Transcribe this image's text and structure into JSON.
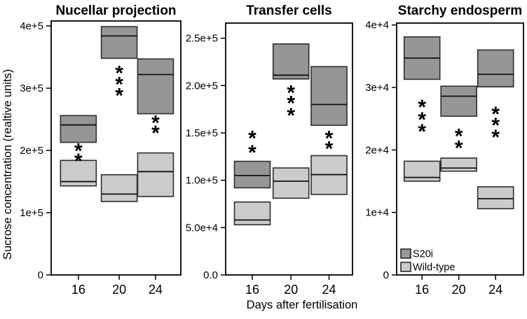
{
  "figure": {
    "ylabel": "Sucrose concentration (realtive units)",
    "xlabel": "Days after fertilisation",
    "background": "#ffffff",
    "frame_color": "#000000",
    "legend": [
      {
        "name": "S20i",
        "color": "#969696"
      },
      {
        "name": "Wild-type",
        "color": "#cbcbcb"
      }
    ]
  },
  "chart_data": [
    {
      "type": "box",
      "title": "Nucellar projection",
      "x_categories": [
        "16",
        "20",
        "24"
      ],
      "ylim": [
        0,
        408000
      ],
      "grid": false,
      "yticks": [
        {
          "value": 0,
          "label": "0"
        },
        {
          "value": 100000,
          "label": "1e+5"
        },
        {
          "value": 200000,
          "label": "2e+5"
        },
        {
          "value": 300000,
          "label": "3e+5"
        },
        {
          "value": 400000,
          "label": "4e+5"
        }
      ],
      "series": [
        {
          "name": "S20i",
          "color": "#969696",
          "boxes": [
            {
              "x": "16",
              "low": 213000,
              "median": 241000,
              "high": 256000
            },
            {
              "x": "20",
              "low": 348000,
              "median": 384000,
              "high": 399000
            },
            {
              "x": "24",
              "low": 259000,
              "median": 322000,
              "high": 347000
            }
          ]
        },
        {
          "name": "Wild-type",
          "color": "#cbcbcb",
          "boxes": [
            {
              "x": "16",
              "low": 143000,
              "median": 150000,
              "high": 184000
            },
            {
              "x": "20",
              "low": 118000,
              "median": 130000,
              "high": 161000
            },
            {
              "x": "24",
              "low": 126000,
              "median": 166000,
              "high": 196000
            }
          ]
        }
      ],
      "significance_stars": [
        {
          "x": "16",
          "stars": "**",
          "star_y_values": [
            205000,
            189000
          ]
        },
        {
          "x": "20",
          "stars": "***",
          "star_y_values": [
            330000,
            312000,
            294000
          ]
        },
        {
          "x": "24",
          "stars": "**",
          "star_y_values": [
            250000,
            234000
          ]
        }
      ]
    },
    {
      "type": "box",
      "title": "Transfer cells",
      "x_categories": [
        "16",
        "20",
        "24"
      ],
      "ylim": [
        0,
        266000
      ],
      "grid": false,
      "yticks": [
        {
          "value": 0,
          "label": "0.0"
        },
        {
          "value": 50000,
          "label": "5.0e+4"
        },
        {
          "value": 100000,
          "label": "1.0e+5"
        },
        {
          "value": 150000,
          "label": "1.5e+5"
        },
        {
          "value": 200000,
          "label": "2.0e+5"
        },
        {
          "value": 250000,
          "label": "2.5e+5"
        }
      ],
      "series": [
        {
          "name": "S20i",
          "color": "#969696",
          "boxes": [
            {
              "x": "16",
              "low": 92000,
              "median": 105000,
              "high": 120000
            },
            {
              "x": "20",
              "low": 207000,
              "median": 211000,
              "high": 244000
            },
            {
              "x": "24",
              "low": 158000,
              "median": 180000,
              "high": 220000
            }
          ]
        },
        {
          "name": "Wild-type",
          "color": "#cbcbcb",
          "boxes": [
            {
              "x": "16",
              "low": 53000,
              "median": 58000,
              "high": 77000
            },
            {
              "x": "20",
              "low": 81000,
              "median": 99000,
              "high": 113000
            },
            {
              "x": "24",
              "low": 85000,
              "median": 106000,
              "high": 126000
            }
          ]
        }
      ],
      "significance_stars": [
        {
          "x": "16",
          "stars": "**",
          "star_y_values": [
            148000,
            133000
          ]
        },
        {
          "x": "20",
          "stars": "***",
          "star_y_values": [
            196000,
            185000,
            172000
          ]
        },
        {
          "x": "24",
          "stars": "**",
          "star_y_values": [
            148000,
            137000
          ]
        }
      ]
    },
    {
      "type": "box",
      "title": "Starchy endosperm",
      "x_categories": [
        "16",
        "20",
        "24"
      ],
      "ylim": [
        0,
        40300
      ],
      "grid": false,
      "yticks": [
        {
          "value": 0,
          "label": "0"
        },
        {
          "value": 10000,
          "label": "1e+4"
        },
        {
          "value": 20000,
          "label": "2e+4"
        },
        {
          "value": 30000,
          "label": "3e+4"
        },
        {
          "value": 40000,
          "label": "4e+4"
        }
      ],
      "series": [
        {
          "name": "S20i",
          "color": "#969696",
          "boxes": [
            {
              "x": "16",
              "low": 31300,
              "median": 34700,
              "high": 38100
            },
            {
              "x": "20",
              "low": 25400,
              "median": 28600,
              "high": 30200
            },
            {
              "x": "24",
              "low": 30100,
              "median": 32100,
              "high": 36000
            }
          ]
        },
        {
          "name": "Wild-type",
          "color": "#cbcbcb",
          "boxes": [
            {
              "x": "16",
              "low": 15000,
              "median": 15600,
              "high": 18200
            },
            {
              "x": "20",
              "low": 16600,
              "median": 17100,
              "high": 18700
            },
            {
              "x": "24",
              "low": 10600,
              "median": 12200,
              "high": 14100
            }
          ]
        }
      ],
      "significance_stars": [
        {
          "x": "16",
          "stars": "***",
          "star_y_values": [
            27400,
            25400,
            23500
          ]
        },
        {
          "x": "20",
          "stars": "**",
          "star_y_values": [
            22800,
            20900
          ]
        },
        {
          "x": "24",
          "stars": "***",
          "star_y_values": [
            26300,
            24500,
            22600
          ]
        }
      ]
    }
  ]
}
